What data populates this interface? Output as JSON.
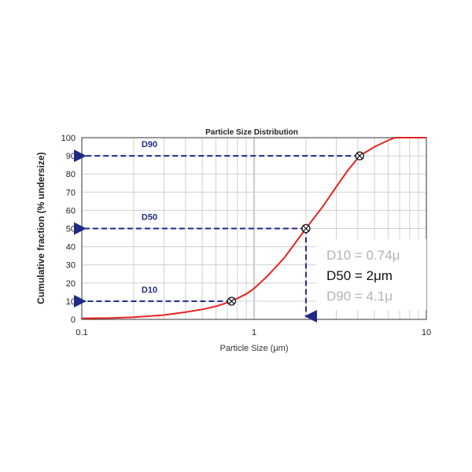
{
  "chart_data": {
    "type": "line",
    "title": "Particle Size Distribution",
    "xlabel": "Particle Size (μm)",
    "ylabel": "Cumulative fraction (% undersize)",
    "x_scale": "log",
    "xlim": [
      0.1,
      10
    ],
    "ylim": [
      0,
      100
    ],
    "x_ticks": [
      {
        "value": 0.1,
        "label": "0.1"
      },
      {
        "value": 1,
        "label": "1"
      },
      {
        "value": 10,
        "label": "10"
      }
    ],
    "y_ticks": [
      {
        "value": 0,
        "label": "0"
      },
      {
        "value": 10,
        "label": "10"
      },
      {
        "value": 20,
        "label": "20"
      },
      {
        "value": 30,
        "label": "30"
      },
      {
        "value": 40,
        "label": "40"
      },
      {
        "value": 50,
        "label": "50"
      },
      {
        "value": 60,
        "label": "60"
      },
      {
        "value": 70,
        "label": "70"
      },
      {
        "value": 80,
        "label": "80"
      },
      {
        "value": 90,
        "label": "90"
      },
      {
        "value": 100,
        "label": "100"
      }
    ],
    "grid": true,
    "series": [
      {
        "color": "#e8231f",
        "x": [
          0.1,
          0.15,
          0.2,
          0.3,
          0.4,
          0.5,
          0.6,
          0.74,
          0.9,
          1.0,
          1.2,
          1.5,
          2.0,
          2.5,
          3.0,
          3.5,
          4.1,
          5.0,
          6.0,
          6.6,
          7.0,
          8.0,
          10.0
        ],
        "y": [
          0.5,
          0.8,
          1.2,
          2.4,
          4.0,
          5.5,
          7.2,
          10.0,
          14.0,
          17.0,
          24.0,
          34.0,
          50.0,
          62.0,
          73.0,
          82.0,
          90.0,
          95.0,
          98.5,
          100.0,
          100.0,
          100.0,
          100.0
        ]
      }
    ],
    "markers": [
      {
        "label": "D90",
        "x": 4.1,
        "y": 90
      },
      {
        "label": "D50",
        "x": 2.0,
        "y": 50
      },
      {
        "label": "D10",
        "x": 0.74,
        "y": 10
      }
    ],
    "annotations": [
      {
        "text": "D10 = 0.74μ",
        "color": "#b3b3b3"
      },
      {
        "text": "D50 = 2μm",
        "color": "#111111"
      },
      {
        "text": "D90 = 4.1μ",
        "color": "#b3b3b3"
      }
    ],
    "colors": {
      "curve": "#e8231f",
      "marker_lines": "#1f2a86"
    }
  }
}
